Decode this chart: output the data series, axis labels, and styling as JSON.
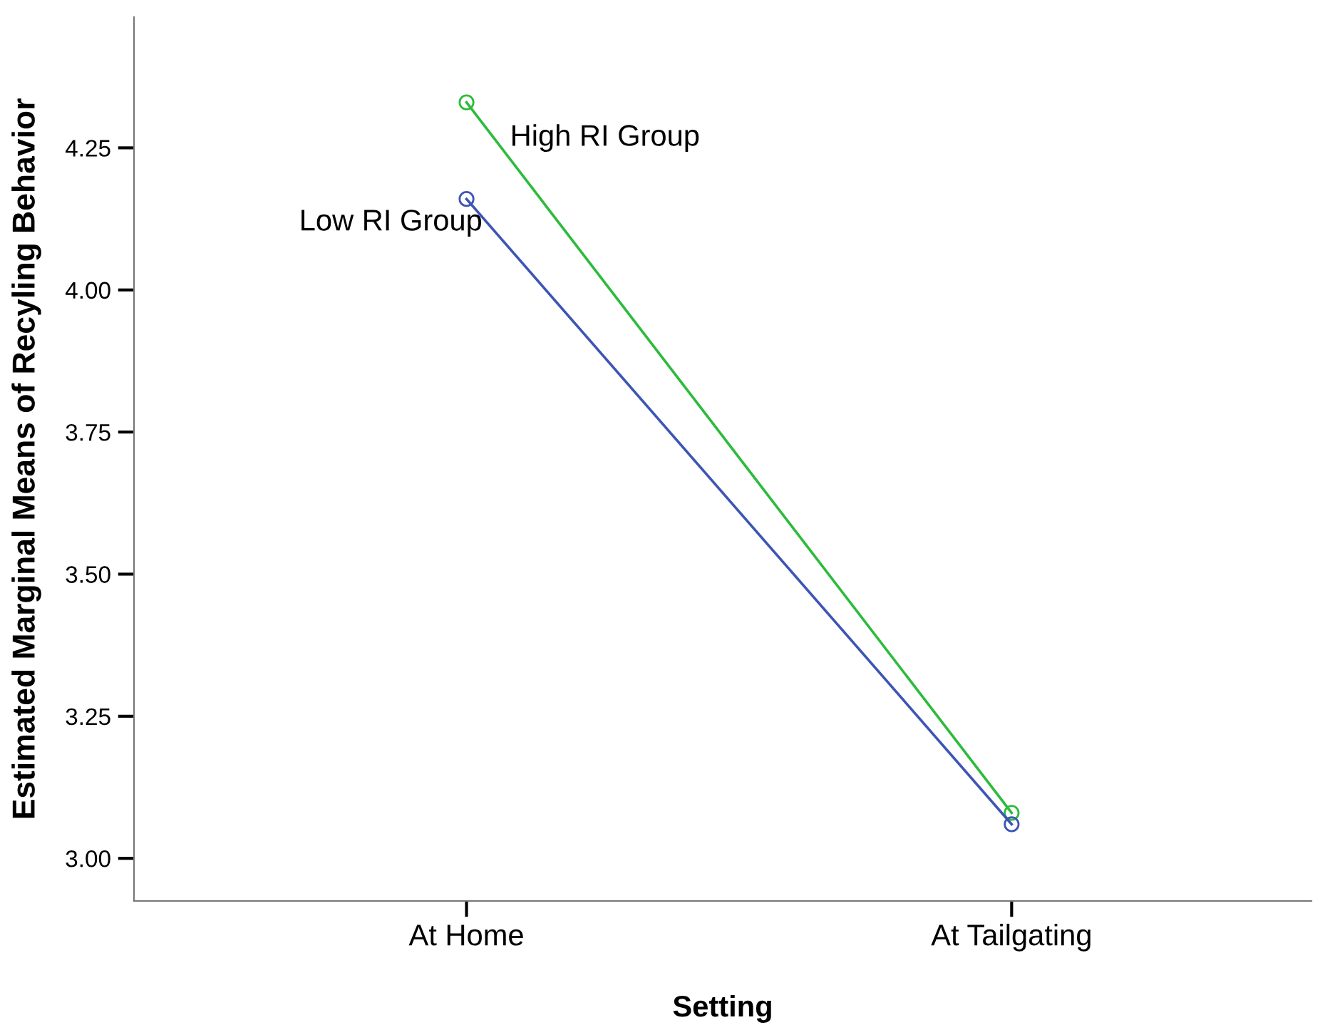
{
  "chart_data": {
    "type": "line",
    "xlabel": "Setting",
    "ylabel": "Estimated Marginal Means of Recyling Behavior",
    "categories": [
      "At Home",
      "At Tailgating"
    ],
    "series": [
      {
        "name": "High RI Group",
        "color": "#2dbb3c",
        "values": [
          4.33,
          3.08
        ]
      },
      {
        "name": "Low RI Group",
        "color": "#3d55b5",
        "values": [
          4.16,
          3.06
        ]
      }
    ],
    "ylim": [
      2.925,
      4.48
    ],
    "yticks": [
      {
        "value": 3.0,
        "label": "3.00"
      },
      {
        "value": 3.25,
        "label": "3.25"
      },
      {
        "value": 3.5,
        "label": "3.50"
      },
      {
        "value": 3.75,
        "label": "3.75"
      },
      {
        "value": 4.0,
        "label": "4.00"
      },
      {
        "value": 4.25,
        "label": "4.25"
      }
    ],
    "marker": "circle",
    "line_style": "solid",
    "grid": false,
    "legend": false
  }
}
